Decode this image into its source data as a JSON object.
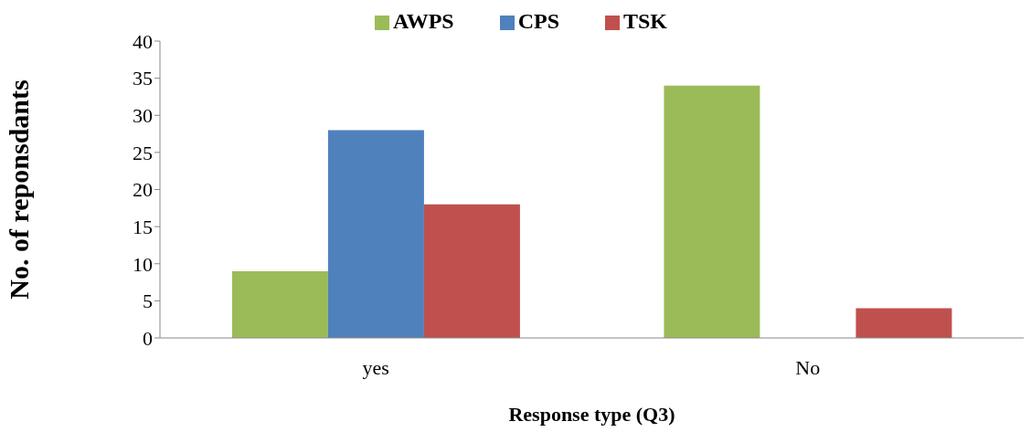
{
  "chart_data": {
    "type": "bar",
    "xlabel": "Response type (Q3)",
    "ylabel": "No. of reponsdants",
    "categories": [
      "yes",
      "No"
    ],
    "series": [
      {
        "name": "AWPS",
        "color": "#9bbb59",
        "values": [
          9,
          34
        ]
      },
      {
        "name": "CPS",
        "color": "#4f81bd",
        "values": [
          28,
          0
        ]
      },
      {
        "name": "TSK",
        "color": "#c0504d",
        "values": [
          18,
          4
        ]
      }
    ],
    "ylim": [
      0,
      40
    ],
    "yticks": [
      0,
      5,
      10,
      15,
      20,
      25,
      30,
      35,
      40
    ],
    "grid": false,
    "legend": "top"
  }
}
